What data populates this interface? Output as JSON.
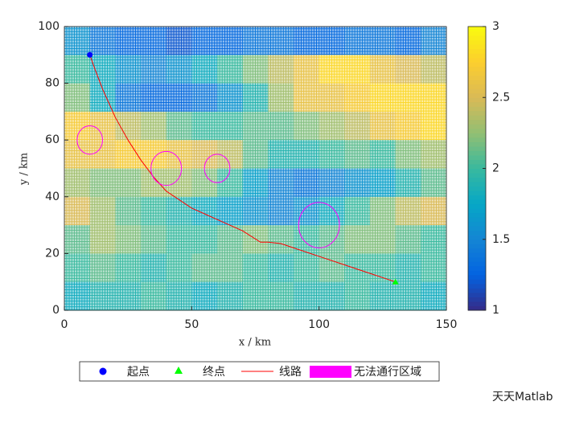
{
  "chart_data": {
    "type": "path-map",
    "xlabel": "x / km",
    "ylabel": "y / km",
    "xlim": [
      0,
      150
    ],
    "ylim": [
      0,
      100
    ],
    "xticks": [
      0,
      50,
      100,
      150
    ],
    "yticks": [
      0,
      20,
      40,
      60,
      80,
      100
    ],
    "colorbar": {
      "clim": [
        1,
        3
      ],
      "ticks": [
        1,
        1.5,
        2,
        2.5,
        3
      ]
    },
    "field": [
      [
        1.6,
        1.4,
        1.3,
        1.3,
        1.2,
        1.3,
        1.3,
        1.4,
        1.4,
        1.3,
        1.3,
        1.4,
        1.4,
        1.3,
        1.5
      ],
      [
        2.0,
        1.8,
        1.6,
        1.5,
        1.6,
        1.8,
        2.0,
        2.2,
        2.4,
        2.6,
        2.8,
        2.8,
        2.6,
        2.5,
        2.4
      ],
      [
        2.2,
        1.8,
        1.4,
        1.3,
        1.3,
        1.4,
        1.6,
        1.9,
        2.3,
        2.6,
        2.6,
        2.7,
        2.8,
        2.8,
        2.8
      ],
      [
        2.7,
        2.6,
        2.4,
        2.3,
        2.1,
        2.0,
        2.0,
        2.1,
        2.1,
        2.2,
        2.3,
        2.4,
        2.6,
        2.7,
        2.8
      ],
      [
        2.6,
        2.6,
        2.7,
        2.7,
        2.6,
        2.5,
        2.4,
        2.1,
        1.9,
        1.9,
        2.0,
        2.1,
        2.0,
        2.2,
        2.3
      ],
      [
        2.3,
        2.2,
        2.2,
        2.3,
        2.3,
        2.2,
        2.0,
        1.7,
        1.5,
        1.4,
        1.5,
        1.6,
        1.7,
        1.9,
        2.1
      ],
      [
        2.5,
        2.3,
        2.1,
        2.0,
        1.9,
        1.8,
        1.7,
        1.6,
        1.5,
        1.6,
        1.8,
        2.0,
        2.2,
        2.4,
        2.5
      ],
      [
        2.1,
        2.3,
        2.2,
        2.1,
        2.0,
        2.0,
        2.1,
        2.2,
        2.1,
        2.0,
        2.1,
        2.2,
        2.2,
        2.1,
        2.0
      ],
      [
        2.0,
        2.1,
        2.0,
        1.9,
        2.0,
        2.1,
        2.1,
        2.0,
        1.9,
        2.0,
        2.1,
        2.0,
        2.0,
        1.9,
        2.0
      ],
      [
        1.8,
        1.9,
        1.9,
        2.0,
        1.9,
        1.8,
        1.9,
        2.0,
        2.0,
        1.9,
        1.9,
        2.0,
        1.9,
        1.9,
        1.8
      ]
    ],
    "start": {
      "name": "起点",
      "x": 10,
      "y": 90,
      "color": "#0000ff"
    },
    "end": {
      "name": "终点",
      "x": 130,
      "y": 10,
      "color": "#00ff00"
    },
    "route": {
      "name": "线路",
      "color": "#ff0000",
      "x": [
        10,
        12,
        15,
        20,
        25,
        30,
        35,
        40,
        45,
        50,
        60,
        70,
        77,
        80,
        85,
        90,
        100,
        110,
        120,
        130
      ],
      "y": [
        90,
        85,
        78,
        68,
        60,
        53,
        47,
        42,
        39,
        36,
        32,
        28,
        24,
        24,
        23.5,
        22,
        19,
        16,
        13,
        10
      ]
    },
    "zones": {
      "name": "无法通行区域",
      "color": "#ff00ff",
      "circles": [
        {
          "x": 10,
          "y": 60,
          "r": 5
        },
        {
          "x": 40,
          "y": 50,
          "r": 6
        },
        {
          "x": 60,
          "y": 50,
          "r": 5
        },
        {
          "x": 100,
          "y": 30,
          "r": 8
        }
      ]
    }
  },
  "watermark": "天天Matlab"
}
